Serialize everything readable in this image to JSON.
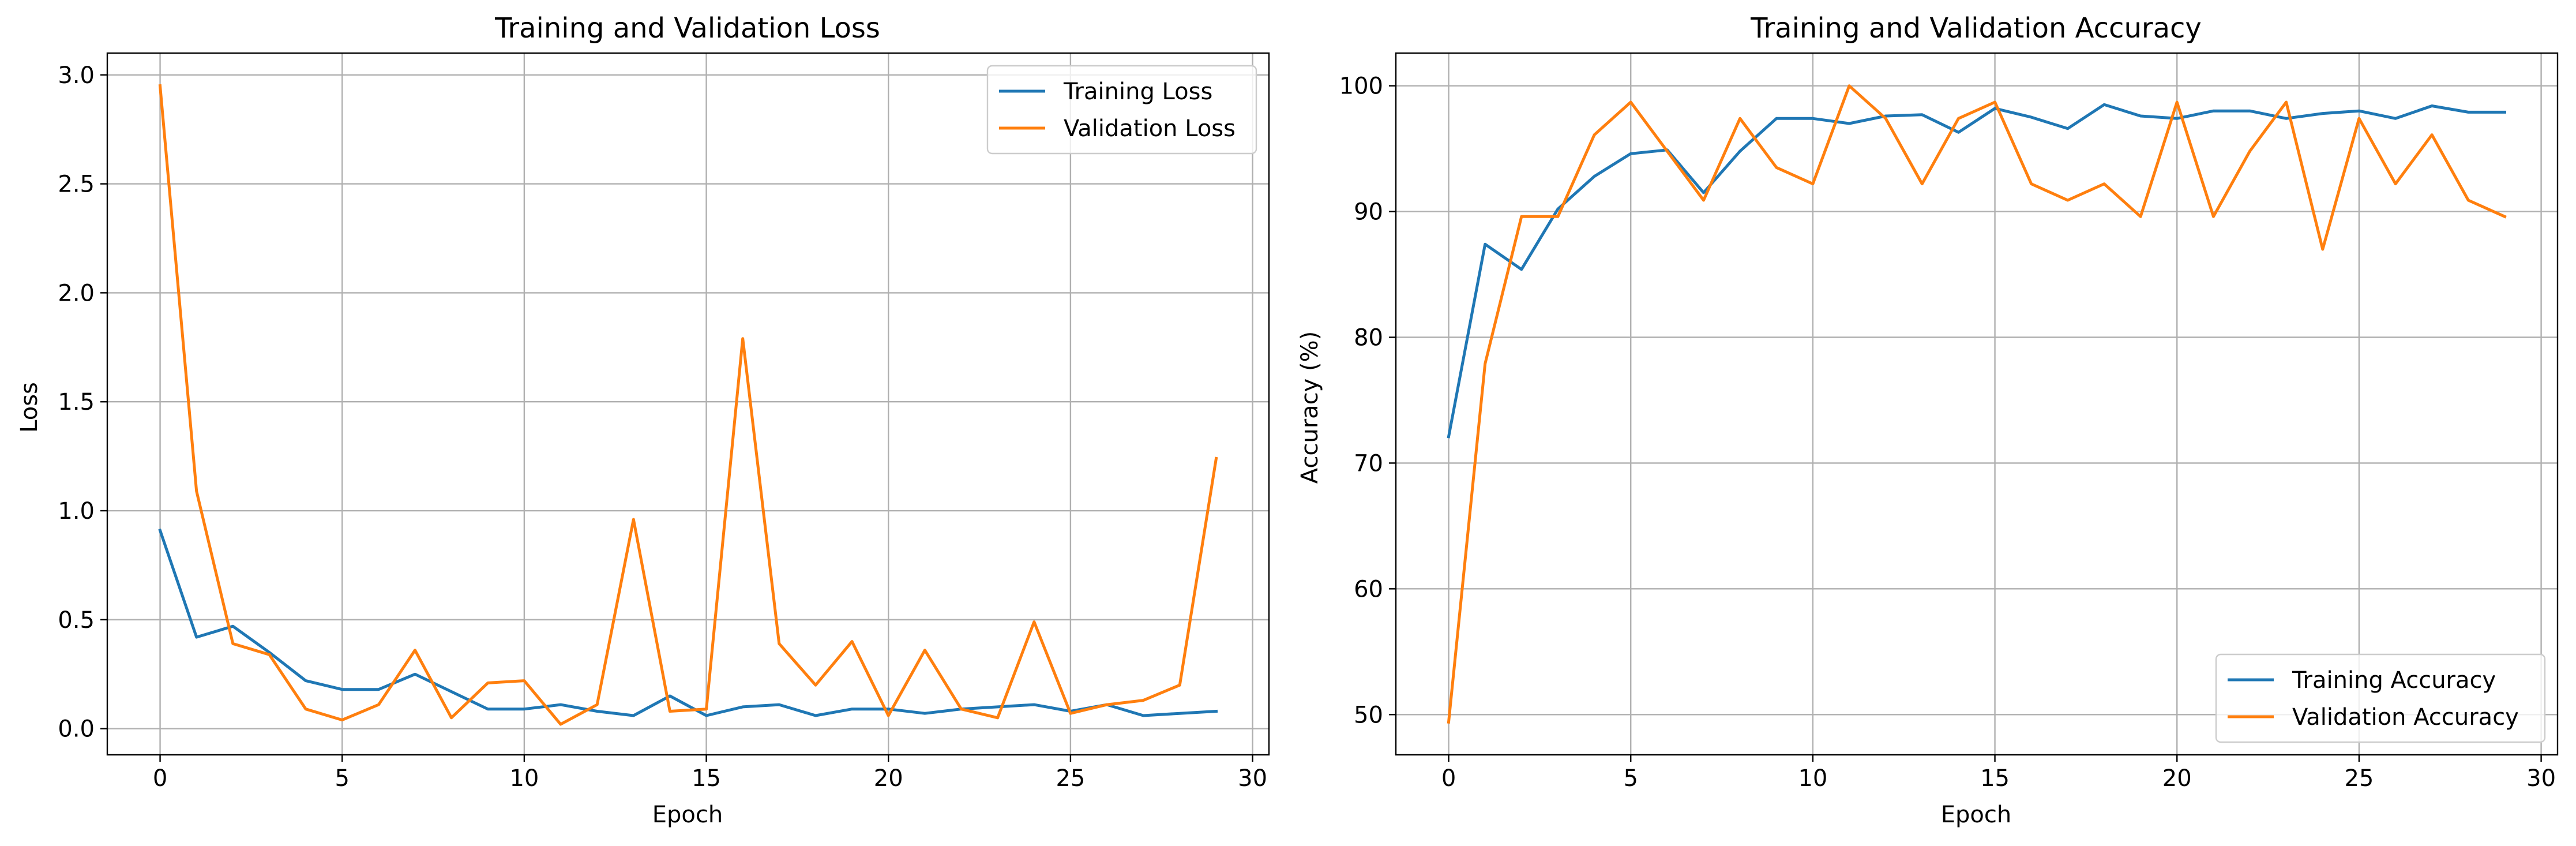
{
  "colors": {
    "training": "#1f77b4",
    "validation": "#ff7f0e",
    "grid": "#b0b0b0",
    "axis": "#000000",
    "legend_border": "#cccccc"
  },
  "chart_data": [
    {
      "type": "line",
      "title": "Training and Validation Loss",
      "xlabel": "Epoch",
      "ylabel": "Loss",
      "xlim": [
        -1.45,
        30.45
      ],
      "ylim": [
        -0.12,
        3.1
      ],
      "xticks": [
        0,
        5,
        10,
        15,
        20,
        25,
        30
      ],
      "yticks": [
        0.0,
        0.5,
        1.0,
        1.5,
        2.0,
        2.5,
        3.0
      ],
      "ytick_labels": [
        "0.0",
        "0.5",
        "1.0",
        "1.5",
        "2.0",
        "2.5",
        "3.0"
      ],
      "grid": true,
      "legend": "upper right",
      "x": [
        0,
        1,
        2,
        3,
        4,
        5,
        6,
        7,
        8,
        9,
        10,
        11,
        12,
        13,
        14,
        15,
        16,
        17,
        18,
        19,
        20,
        21,
        22,
        23,
        24,
        25,
        26,
        27,
        28,
        29
      ],
      "series": [
        {
          "name": "Training Loss",
          "color_key": "training",
          "values": [
            0.91,
            0.42,
            0.47,
            0.35,
            0.22,
            0.18,
            0.18,
            0.25,
            0.17,
            0.09,
            0.09,
            0.11,
            0.08,
            0.06,
            0.15,
            0.06,
            0.1,
            0.11,
            0.06,
            0.09,
            0.09,
            0.07,
            0.09,
            0.1,
            0.11,
            0.08,
            0.11,
            0.06,
            0.07,
            0.08
          ]
        },
        {
          "name": "Validation Loss",
          "color_key": "validation",
          "values": [
            2.95,
            1.09,
            0.39,
            0.34,
            0.09,
            0.04,
            0.11,
            0.36,
            0.05,
            0.21,
            0.22,
            0.02,
            0.11,
            0.96,
            0.08,
            0.09,
            1.79,
            0.39,
            0.2,
            0.4,
            0.06,
            0.36,
            0.09,
            0.05,
            0.49,
            0.07,
            0.11,
            0.13,
            0.2,
            1.24
          ]
        }
      ]
    },
    {
      "type": "line",
      "title": "Training and Validation Accuracy",
      "xlabel": "Epoch",
      "ylabel": "Accuracy (%)",
      "xlim": [
        -1.45,
        30.45
      ],
      "ylim": [
        46.8,
        102.6
      ],
      "xticks": [
        0,
        5,
        10,
        15,
        20,
        25,
        30
      ],
      "yticks": [
        50,
        60,
        70,
        80,
        90,
        100
      ],
      "ytick_labels": [
        "50",
        "60",
        "70",
        "80",
        "90",
        "100"
      ],
      "grid": true,
      "legend": "lower right",
      "x": [
        0,
        1,
        2,
        3,
        4,
        5,
        6,
        7,
        8,
        9,
        10,
        11,
        12,
        13,
        14,
        15,
        16,
        17,
        18,
        19,
        20,
        21,
        22,
        23,
        24,
        25,
        26,
        27,
        28,
        29
      ],
      "series": [
        {
          "name": "Training Accuracy",
          "color_key": "training",
          "values": [
            72.1,
            87.4,
            85.4,
            90.2,
            92.8,
            94.6,
            94.9,
            91.5,
            94.8,
            97.4,
            97.4,
            97.0,
            97.6,
            97.7,
            96.3,
            98.2,
            97.5,
            96.6,
            98.5,
            97.6,
            97.4,
            98.0,
            98.0,
            97.4,
            97.8,
            98.0,
            97.4,
            98.4,
            97.9,
            97.9
          ]
        },
        {
          "name": "Validation Accuracy",
          "color_key": "validation",
          "values": [
            49.4,
            77.9,
            89.6,
            89.6,
            96.1,
            98.7,
            94.8,
            90.9,
            97.4,
            93.5,
            92.2,
            100.0,
            97.4,
            92.2,
            97.4,
            98.7,
            92.2,
            90.9,
            92.2,
            89.6,
            98.7,
            89.6,
            94.8,
            98.7,
            87.0,
            97.4,
            92.2,
            96.1,
            90.9,
            89.6
          ]
        }
      ]
    }
  ]
}
